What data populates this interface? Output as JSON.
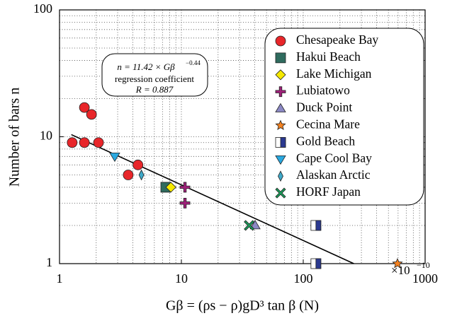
{
  "chart_data": {
    "type": "scatter",
    "x_label": "Gβ = (ρs − ρ)gD³ tan β (N)",
    "y_label": "Number of bars n",
    "x_multiplier": "×10",
    "x_multiplier_exp": "−10",
    "annotation": {
      "line1": "n = 11.42 × Gβ",
      "line1_exp": "−0.44",
      "line2": "regression coefficient",
      "line3": "R = 0.887"
    },
    "fit_line": {
      "x": [
        1.25,
        260
      ],
      "values": [
        10.4,
        1.0
      ],
      "color": "#000000"
    },
    "xlim": [
      1,
      1000
    ],
    "ylim": [
      1,
      100
    ],
    "xticks": [
      1,
      10,
      100,
      1000
    ],
    "yticks": [
      1,
      10,
      100
    ],
    "log_x": true,
    "log_y": true,
    "grid": true,
    "legend": "upper right",
    "series": [
      {
        "name": "Chesapeake Bay",
        "color": "#e8262a",
        "marker": "circle",
        "x": [
          1.27,
          1.6,
          1.83,
          1.6,
          2.09,
          3.66,
          4.4
        ],
        "values": [
          9,
          17,
          15,
          9,
          9,
          5,
          6
        ]
      },
      {
        "name": "Hakui Beach",
        "color": "#2f6b5e",
        "marker": "square",
        "x": [
          7.45
        ],
        "values": [
          4
        ]
      },
      {
        "name": "Lake Michigan",
        "color": "#f5e900",
        "marker": "diamond",
        "x": [
          8.2
        ],
        "values": [
          4
        ]
      },
      {
        "name": "Lubiatowo",
        "color": "#a0207a",
        "marker": "plus",
        "x": [
          10.7,
          10.7
        ],
        "values": [
          4,
          3
        ]
      },
      {
        "name": "Duck Point",
        "color": "#8b88c4",
        "marker": "triangle",
        "x": [
          40.3
        ],
        "values": [
          2
        ]
      },
      {
        "name": "Cecina Mare",
        "color": "#f58220",
        "marker": "star",
        "x": [
          593
        ],
        "values": [
          1
        ]
      },
      {
        "name": "Gold Beach",
        "color": "#2b3990",
        "marker": "half-square",
        "x": [
          127,
          127
        ],
        "values": [
          2,
          1
        ]
      },
      {
        "name": "Cape Cool Bay",
        "color": "#29a8e0",
        "marker": "triangle-down",
        "x": [
          2.84
        ],
        "values": [
          7
        ]
      },
      {
        "name": "Alaskan Arctic",
        "color": "#3fa9c9",
        "marker": "thin-diamond",
        "x": [
          4.7
        ],
        "values": [
          5
        ]
      },
      {
        "name": "HORF Japan",
        "color": "#1a9b5a",
        "marker": "x",
        "x": [
          36
        ],
        "values": [
          2
        ]
      }
    ]
  }
}
